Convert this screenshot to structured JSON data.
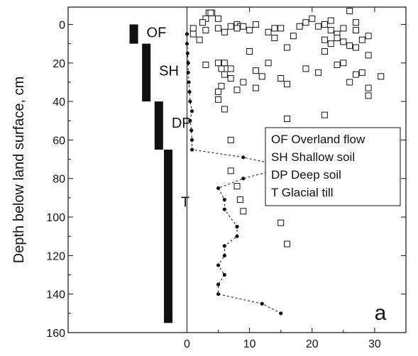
{
  "chart_data": {
    "type": "scatter",
    "ylabel": "Depth below land surface, cm",
    "xlabel": "",
    "xlim": [
      -19,
      35
    ],
    "ylim": [
      160,
      -9
    ],
    "y_reversed": true,
    "grid": false,
    "x_ticks": [
      0,
      10,
      20,
      30
    ],
    "y_ticks": [
      0,
      20,
      40,
      60,
      80,
      100,
      120,
      140,
      160
    ],
    "x_tick_labels": [
      "0",
      "10",
      "20",
      "30"
    ],
    "y_tick_labels": [
      "0",
      "20",
      "40",
      "60",
      "80",
      "100",
      "120",
      "140",
      "160"
    ],
    "panel_label": "a",
    "legend": {
      "placement": "right-middle",
      "entries": [
        "OF Overland flow",
        "SH Shallow soil",
        "DP Deep soil",
        "T Glacial till"
      ]
    },
    "zones": [
      {
        "label": "OF",
        "x": -8.5,
        "y_top": 0,
        "y_bottom": 10,
        "label_y": 4
      },
      {
        "label": "SH",
        "x": -6.5,
        "y_top": 10,
        "y_bottom": 40,
        "label_y": 24
      },
      {
        "label": "DP",
        "x": -4.5,
        "y_top": 40,
        "y_bottom": 65,
        "label_y": 51
      },
      {
        "label": "T",
        "x": -3.0,
        "y_top": 65,
        "y_bottom": 155,
        "label_y": 92
      }
    ],
    "series": [
      {
        "marker": "dot",
        "line": "dashed",
        "points": [
          [
            0,
            5
          ],
          [
            0,
            10
          ],
          [
            0.1,
            15
          ],
          [
            0.2,
            20
          ],
          [
            0.2,
            25
          ],
          [
            0.3,
            30
          ],
          [
            0.4,
            35
          ],
          [
            0.5,
            40
          ],
          [
            0.8,
            45
          ],
          [
            0.5,
            50
          ],
          [
            0.7,
            55
          ],
          [
            0.8,
            60
          ],
          [
            0.8,
            65
          ],
          [
            9,
            69
          ],
          [
            16,
            74
          ],
          [
            9,
            80
          ],
          [
            5,
            85
          ],
          [
            6,
            91
          ],
          [
            6,
            96
          ],
          [
            8,
            105
          ],
          [
            8,
            110
          ],
          [
            6,
            115
          ],
          [
            6,
            120
          ],
          [
            5,
            125
          ],
          [
            6,
            130
          ],
          [
            5,
            135
          ],
          [
            5,
            140
          ],
          [
            12,
            145
          ],
          [
            15,
            150
          ]
        ]
      },
      {
        "marker": "open-square",
        "line": "none",
        "points": [
          [
            3.5,
            -6
          ],
          [
            4,
            -6
          ],
          [
            3.8,
            -6
          ],
          [
            26,
            -7
          ],
          [
            3,
            -3
          ],
          [
            5,
            -3
          ],
          [
            2.5,
            -1
          ],
          [
            1,
            2
          ],
          [
            3,
            3
          ],
          [
            7,
            1
          ],
          [
            8,
            0
          ],
          [
            8.5,
            1
          ],
          [
            9,
            1
          ],
          [
            11,
            0
          ],
          [
            14,
            2
          ],
          [
            20,
            -3
          ],
          [
            21,
            1
          ],
          [
            22,
            0
          ],
          [
            23,
            3
          ],
          [
            25,
            2
          ],
          [
            27,
            -1
          ],
          [
            1,
            5
          ],
          [
            6,
            4
          ],
          [
            8,
            2
          ],
          [
            10,
            3
          ],
          [
            5,
            2
          ],
          [
            13,
            4
          ],
          [
            15,
            2
          ],
          [
            18,
            1
          ],
          [
            19,
            -1
          ],
          [
            23,
            -2
          ],
          [
            24,
            5
          ],
          [
            27,
            3
          ],
          [
            29,
            6
          ],
          [
            2,
            8
          ],
          [
            14,
            7
          ],
          [
            17,
            6
          ],
          [
            22,
            8
          ],
          [
            23,
            10
          ],
          [
            24,
            7
          ],
          [
            25,
            9
          ],
          [
            26,
            11
          ],
          [
            28,
            8
          ],
          [
            10,
            14
          ],
          [
            16,
            12
          ],
          [
            22,
            14
          ],
          [
            27,
            12
          ],
          [
            29,
            16
          ],
          [
            3,
            21
          ],
          [
            5,
            20
          ],
          [
            6,
            20
          ],
          [
            5.5,
            23
          ],
          [
            6,
            26
          ],
          [
            7,
            23
          ],
          [
            11,
            24
          ],
          [
            13,
            20
          ],
          [
            19,
            23
          ],
          [
            21,
            25
          ],
          [
            24,
            21
          ],
          [
            25,
            20
          ],
          [
            27,
            26
          ],
          [
            28,
            25
          ],
          [
            31,
            27
          ],
          [
            7,
            28
          ],
          [
            9,
            30
          ],
          [
            12,
            27
          ],
          [
            15,
            28
          ],
          [
            26,
            30
          ],
          [
            29,
            33
          ],
          [
            5.5,
            32
          ],
          [
            5,
            35
          ],
          [
            8,
            34
          ],
          [
            11,
            33
          ],
          [
            16,
            31
          ],
          [
            29,
            37
          ],
          [
            5,
            39
          ],
          [
            6,
            44
          ],
          [
            22,
            47
          ],
          [
            16,
            49
          ],
          [
            7,
            60
          ],
          [
            7,
            76
          ],
          [
            8,
            84
          ],
          [
            8.5,
            91
          ],
          [
            9,
            97
          ],
          [
            15,
            103
          ],
          [
            16,
            114
          ]
        ]
      }
    ]
  }
}
